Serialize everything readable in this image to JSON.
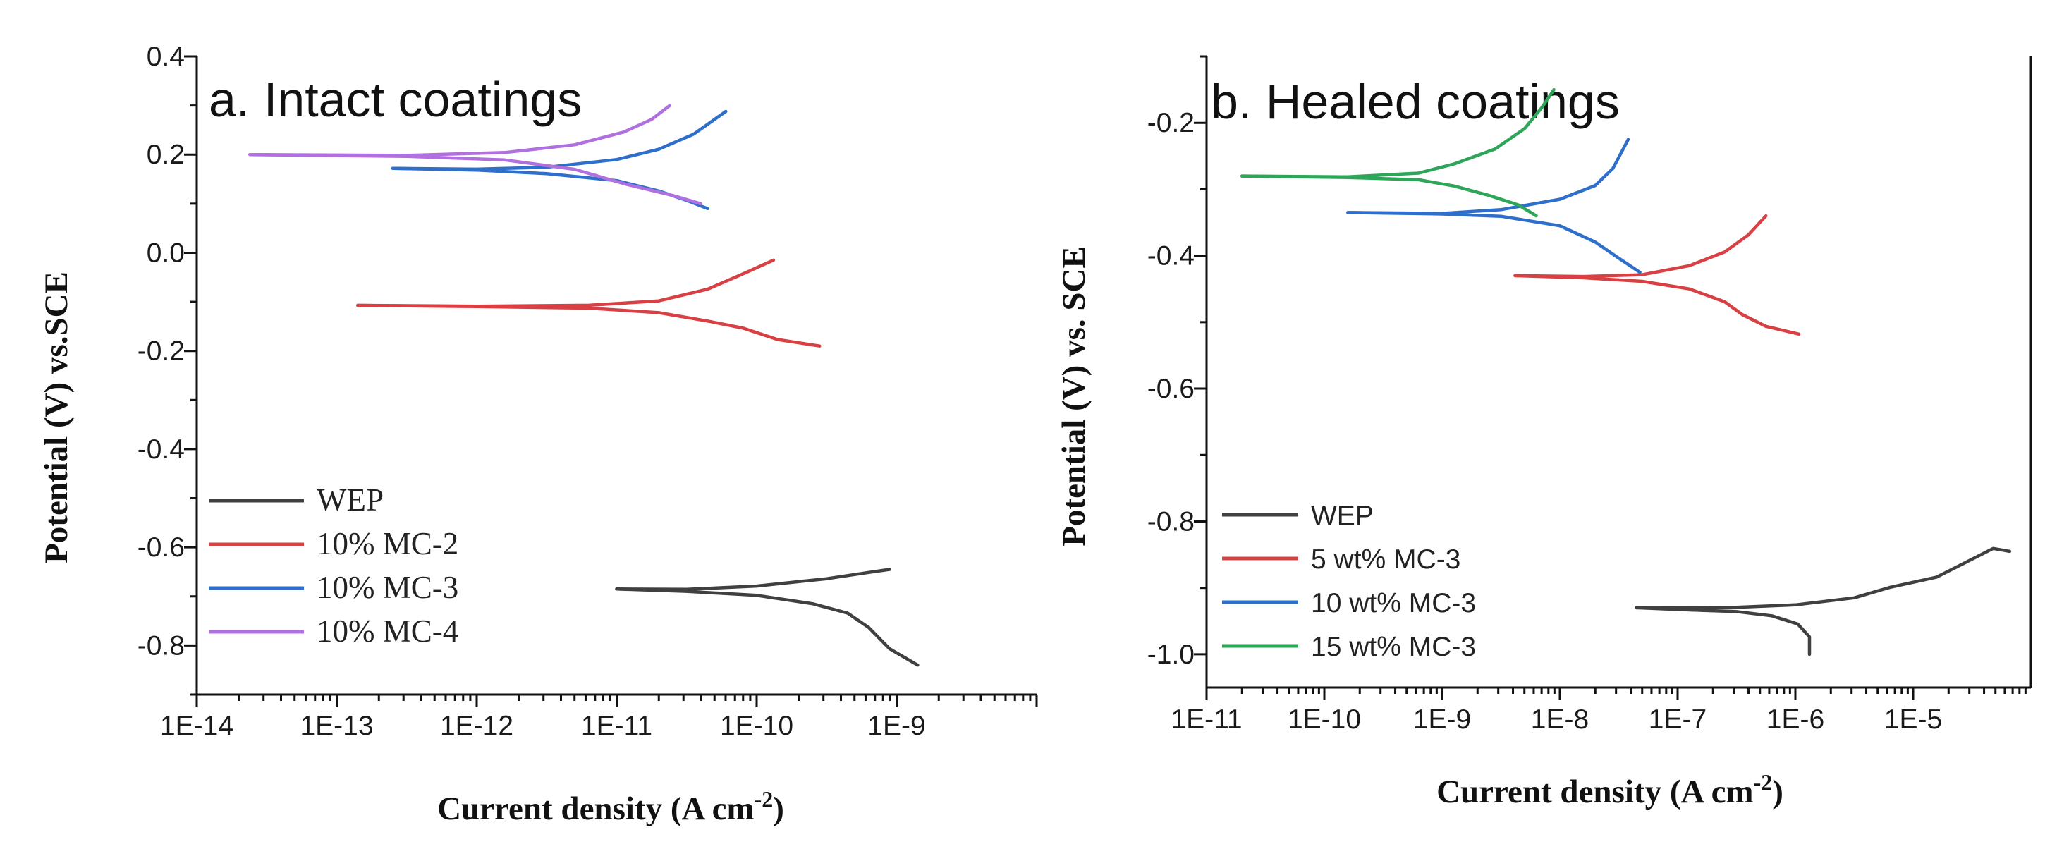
{
  "colors": {
    "WEP": "#404040",
    "MC2": "#d94043",
    "MC3": "#2f6fcc",
    "MC4": "#b070e0",
    "MC3_15": "#2ea65a"
  },
  "chart_data": [
    {
      "type": "line",
      "title": "a. Intact coatings",
      "xlabel": "Current density (A cm⁻²)",
      "ylabel": "Potential (V) vs.SCE",
      "xscale": "log",
      "xlim": [
        1e-14,
        1e-08
      ],
      "ylim": [
        -0.9,
        0.4
      ],
      "xticks": [
        -14,
        -13,
        -12,
        -11,
        -10,
        -9
      ],
      "xtick_labels": [
        "1E-14",
        "1E-13",
        "1E-12",
        "1E-11",
        "1E-10",
        "1E-9"
      ],
      "yticks": [
        0.4,
        0.2,
        0.0,
        -0.2,
        -0.4,
        -0.6,
        -0.8
      ],
      "ytick_labels": [
        "0.4",
        "0.2",
        "0.0",
        "-0.2",
        "-0.4",
        "-0.6",
        "-0.8"
      ],
      "legend": [
        "WEP",
        "10% MC-2",
        "10% MC-3",
        "10% MC-4"
      ],
      "legend_position": "bottom-left",
      "series": [
        {
          "name": "WEP",
          "color_key": "WEP",
          "anodic": [
            [
              -11.0,
              -0.685
            ],
            [
              -10.5,
              -0.684
            ],
            [
              -10.0,
              -0.678
            ],
            [
              -9.5,
              -0.664
            ],
            [
              -9.2,
              -0.652
            ],
            [
              -9.05,
              -0.645
            ]
          ],
          "cathodic": [
            [
              -11.0,
              -0.685
            ],
            [
              -10.5,
              -0.688
            ],
            [
              -10.0,
              -0.697
            ],
            [
              -9.6,
              -0.715
            ],
            [
              -9.35,
              -0.735
            ],
            [
              -9.2,
              -0.765
            ],
            [
              -9.05,
              -0.805
            ],
            [
              -8.85,
              -0.84
            ]
          ]
        },
        {
          "name": "10% MC-2",
          "color_key": "MC2",
          "anodic": [
            [
              -12.85,
              -0.107
            ],
            [
              -12.0,
              -0.107
            ],
            [
              -11.2,
              -0.106
            ],
            [
              -10.7,
              -0.098
            ],
            [
              -10.35,
              -0.075
            ],
            [
              -10.1,
              -0.045
            ],
            [
              -9.88,
              -0.015
            ]
          ],
          "cathodic": [
            [
              -12.85,
              -0.107
            ],
            [
              -12.0,
              -0.108
            ],
            [
              -11.2,
              -0.112
            ],
            [
              -10.7,
              -0.122
            ],
            [
              -10.35,
              -0.14
            ],
            [
              -10.1,
              -0.155
            ],
            [
              -9.85,
              -0.175
            ],
            [
              -9.55,
              -0.19
            ]
          ]
        },
        {
          "name": "10% MC-3",
          "color_key": "MC3",
          "anodic": [
            [
              -12.6,
              0.172
            ],
            [
              -12.0,
              0.172
            ],
            [
              -11.5,
              0.175
            ],
            [
              -11.0,
              0.19
            ],
            [
              -10.7,
              0.21
            ],
            [
              -10.45,
              0.24
            ],
            [
              -10.22,
              0.288
            ]
          ],
          "cathodic": [
            [
              -12.6,
              0.172
            ],
            [
              -12.0,
              0.17
            ],
            [
              -11.5,
              0.162
            ],
            [
              -11.0,
              0.147
            ],
            [
              -10.7,
              0.125
            ],
            [
              -10.5,
              0.105
            ],
            [
              -10.35,
              0.09
            ]
          ]
        },
        {
          "name": "10% MC-4",
          "color_key": "MC4",
          "anodic": [
            [
              -13.62,
              0.2
            ],
            [
              -12.5,
              0.2
            ],
            [
              -11.8,
              0.205
            ],
            [
              -11.3,
              0.22
            ],
            [
              -10.95,
              0.245
            ],
            [
              -10.75,
              0.27
            ],
            [
              -10.62,
              0.3
            ]
          ],
          "cathodic": [
            [
              -13.62,
              0.2
            ],
            [
              -12.5,
              0.198
            ],
            [
              -11.8,
              0.19
            ],
            [
              -11.3,
              0.17
            ],
            [
              -10.95,
              0.14
            ],
            [
              -10.6,
              0.115
            ],
            [
              -10.4,
              0.1
            ]
          ]
        }
      ]
    },
    {
      "type": "line",
      "title": "b. Healed coatings",
      "xlabel": "Current density (A cm⁻²)",
      "ylabel": "Potential (V) vs. SCE",
      "xscale": "log",
      "xlim": [
        1e-11,
        0.0001
      ],
      "ylim": [
        -1.05,
        -0.1
      ],
      "xticks": [
        -11,
        -10,
        -9,
        -8,
        -7,
        -6,
        -5
      ],
      "xtick_labels": [
        "1E-11",
        "1E-10",
        "1E-9",
        "1E-8",
        "1E-7",
        "1E-6",
        "1E-5"
      ],
      "yticks": [
        -0.2,
        -0.4,
        -0.6,
        -0.8,
        -1.0
      ],
      "ytick_labels": [
        "-0.2",
        "-0.4",
        "-0.6",
        "-0.8",
        "-1.0"
      ],
      "legend": [
        "WEP",
        "5 wt% MC-3",
        "10 wt% MC-3",
        "15 wt% MC-3"
      ],
      "legend_position": "bottom-left",
      "series": [
        {
          "name": "WEP",
          "color_key": "WEP",
          "anodic": [
            [
              -7.35,
              -0.93
            ],
            [
              -6.5,
              -0.928
            ],
            [
              -6.0,
              -0.925
            ],
            [
              -5.5,
              -0.915
            ],
            [
              -5.2,
              -0.9
            ],
            [
              -4.8,
              -0.885
            ],
            [
              -4.55,
              -0.86
            ],
            [
              -4.32,
              -0.84
            ],
            [
              -4.18,
              -0.845
            ]
          ],
          "cathodic": [
            [
              -7.35,
              -0.93
            ],
            [
              -6.9,
              -0.932
            ],
            [
              -6.5,
              -0.935
            ],
            [
              -6.2,
              -0.942
            ],
            [
              -5.98,
              -0.955
            ],
            [
              -5.88,
              -0.975
            ],
            [
              -5.88,
              -1.0
            ]
          ]
        },
        {
          "name": "5 wt% MC-3",
          "color_key": "MC2",
          "anodic": [
            [
              -8.38,
              -0.43
            ],
            [
              -7.8,
              -0.43
            ],
            [
              -7.3,
              -0.428
            ],
            [
              -6.9,
              -0.415
            ],
            [
              -6.6,
              -0.395
            ],
            [
              -6.4,
              -0.37
            ],
            [
              -6.25,
              -0.34
            ]
          ],
          "cathodic": [
            [
              -8.38,
              -0.43
            ],
            [
              -7.8,
              -0.432
            ],
            [
              -7.3,
              -0.438
            ],
            [
              -6.9,
              -0.45
            ],
            [
              -6.6,
              -0.47
            ],
            [
              -6.45,
              -0.49
            ],
            [
              -6.25,
              -0.505
            ],
            [
              -5.97,
              -0.518
            ]
          ]
        },
        {
          "name": "10 wt% MC-3",
          "color_key": "MC3",
          "anodic": [
            [
              -9.8,
              -0.335
            ],
            [
              -9.0,
              -0.335
            ],
            [
              -8.5,
              -0.33
            ],
            [
              -8.0,
              -0.315
            ],
            [
              -7.7,
              -0.295
            ],
            [
              -7.55,
              -0.27
            ],
            [
              -7.42,
              -0.225
            ]
          ],
          "cathodic": [
            [
              -9.8,
              -0.335
            ],
            [
              -9.0,
              -0.336
            ],
            [
              -8.5,
              -0.34
            ],
            [
              -8.0,
              -0.355
            ],
            [
              -7.7,
              -0.38
            ],
            [
              -7.5,
              -0.405
            ],
            [
              -7.32,
              -0.425
            ]
          ]
        },
        {
          "name": "15 wt% MC-3",
          "color_key": "MC3_15",
          "anodic": [
            [
              -10.7,
              -0.28
            ],
            [
              -9.8,
              -0.28
            ],
            [
              -9.2,
              -0.275
            ],
            [
              -8.9,
              -0.262
            ],
            [
              -8.55,
              -0.24
            ],
            [
              -8.3,
              -0.21
            ],
            [
              -8.15,
              -0.175
            ],
            [
              -8.05,
              -0.15
            ]
          ],
          "cathodic": [
            [
              -10.7,
              -0.28
            ],
            [
              -9.8,
              -0.281
            ],
            [
              -9.2,
              -0.285
            ],
            [
              -8.9,
              -0.295
            ],
            [
              -8.6,
              -0.31
            ],
            [
              -8.35,
              -0.325
            ],
            [
              -8.2,
              -0.34
            ]
          ]
        }
      ]
    }
  ]
}
